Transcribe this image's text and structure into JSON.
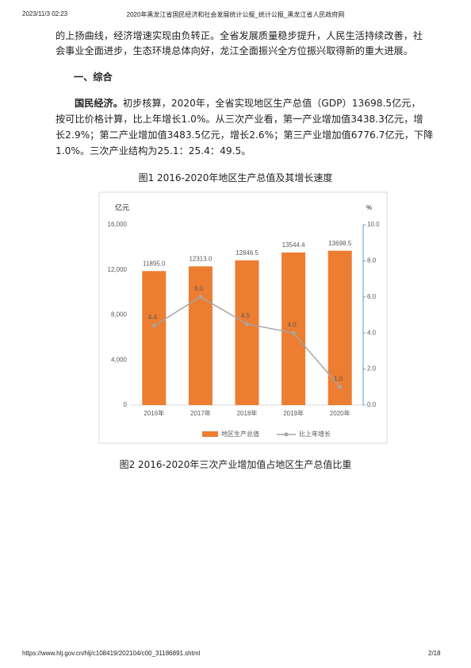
{
  "header": {
    "datetime": "2023/11/3 02:23",
    "title": "2020年黑龙江省国民经济和社会发展统计公报_统计公报_黑龙江省人民政府网"
  },
  "body": {
    "paragraph_1": [
      "的上扬曲线，经济增速实现由负转正。全省发展质量稳步提升，人民生活持续改善，社",
      "会事业全面进步，生态环境总体向好，龙江全面振兴全方位振兴取得新的重大进展。"
    ],
    "heading": "一、综合",
    "paragraph_2": {
      "lead": "国民经济。",
      "lines": [
        "初步核算，2020年，全省实现地区生产总值（GDP）13698.5亿元，",
        "按可比价格计算，比上年增长1.0%。从三次产业看，第一产业增加值3438.3亿元，增",
        "长2.9%；第二产业增加值3483.5亿元，增长2.6%；第三产业增加值6776.7亿元，下降",
        "1.0%。三次产业结构为25.1：25.4：49.5。"
      ]
    }
  },
  "chart_data": {
    "type": "bar",
    "title": "图1  2016-2020年地区生产总值及其增长速度",
    "y_label": "亿元",
    "y2_label": "%",
    "categories": [
      "2016年",
      "2017年",
      "2018年",
      "2019年",
      "2020年"
    ],
    "ylim": [
      0,
      16000
    ],
    "yticks": [
      0,
      {
        "value": 4000,
        "label": "4,000"
      },
      {
        "value": 8000,
        "label": "8,000"
      },
      {
        "value": 12000,
        "label": "12,000"
      },
      {
        "value": 16000,
        "label": "16,000"
      }
    ],
    "y2lim": [
      0,
      10
    ],
    "y2ticks": [
      {
        "value": 0,
        "label": "0.0"
      },
      {
        "value": 2,
        "label": "2.0"
      },
      {
        "value": 4,
        "label": "4.0"
      },
      {
        "value": 6,
        "label": "6.0"
      },
      {
        "value": 8,
        "label": "8.0"
      },
      {
        "value": 10,
        "label": "10.0"
      }
    ],
    "grid": false,
    "legend": "bottom",
    "series": [
      {
        "name": "地区生产总值",
        "type": "bar",
        "color": "#ed7d31",
        "values": [
          11895.0,
          12313.0,
          12846.5,
          13544.4,
          13698.5
        ],
        "value_labels": [
          "11895.0",
          "12313.0",
          "12846.5",
          "13544.4",
          "13698.5"
        ]
      },
      {
        "name": "比上年增长",
        "type": "line",
        "axis": "y2",
        "color": "#a5a5a5",
        "values": [
          4.4,
          6.0,
          4.5,
          4.0,
          1.0
        ],
        "value_labels": [
          "4.4",
          "6.0",
          "4.5",
          "4.0",
          "1.0"
        ]
      }
    ]
  },
  "figure_2": {
    "caption": "图2  2016-2020年三次产业增加值占地区生产总值比重"
  },
  "footer": {
    "url": "https://www.hlj.gov.cn/hlj/c108419/202104/c00_31186891.shtml",
    "page": "2/18"
  }
}
